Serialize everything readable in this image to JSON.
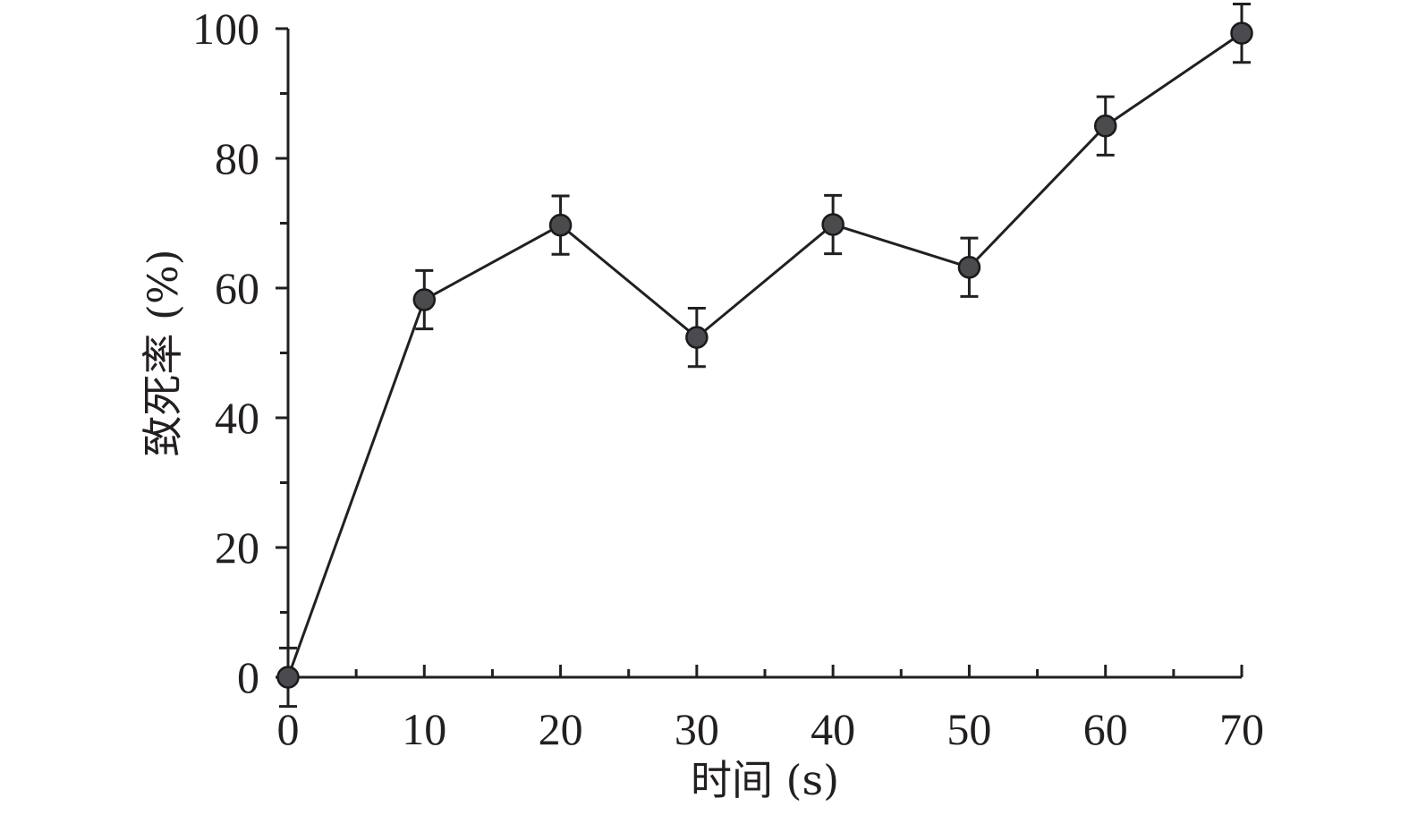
{
  "chart_data": {
    "type": "line",
    "xlabel": "时间 (s)",
    "ylabel": "致死率 (%)",
    "xlim": [
      0,
      70
    ],
    "ylim": [
      0,
      100
    ],
    "x_ticks": [
      0,
      10,
      20,
      30,
      40,
      50,
      60,
      70
    ],
    "x_tick_labels": [
      "0",
      "10",
      "20",
      "30",
      "40",
      "50",
      "60",
      "70"
    ],
    "y_ticks": [
      0,
      20,
      40,
      60,
      80,
      100
    ],
    "y_tick_labels": [
      "0",
      "20",
      "40",
      "60",
      "80",
      "100"
    ],
    "x_minor_step": 5,
    "y_minor_step": 10,
    "grid": false,
    "legend": "none",
    "series": [
      {
        "x": [
          0,
          10,
          20,
          30,
          40,
          50,
          60,
          70
        ],
        "y": [
          0,
          58.2,
          69.7,
          52.4,
          69.8,
          63.2,
          85.0,
          99.3
        ],
        "error": [
          4.5,
          4.5,
          4.5,
          4.5,
          4.5,
          4.5,
          4.5,
          4.5
        ],
        "marker": "circle",
        "color": "#4a4a4f"
      }
    ]
  }
}
